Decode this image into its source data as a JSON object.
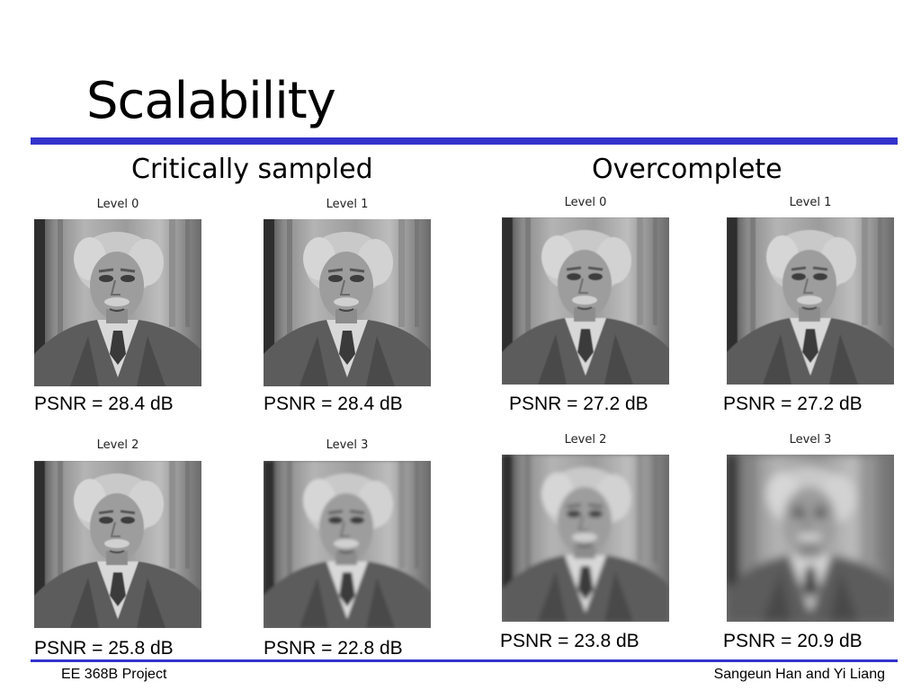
{
  "slide": {
    "title": "Scalability",
    "footer_left": "EE 368B Project",
    "footer_right": "Sangeun Han and Yi Liang"
  },
  "sections": {
    "critically": "Critically sampled",
    "overcomplete": "Overcomplete"
  },
  "panels": {
    "cs0": {
      "level": "Level 0",
      "psnr": "PSNR = 28.4 dB",
      "blur": 0
    },
    "cs1": {
      "level": "Level 1",
      "psnr": "PSNR = 28.4 dB",
      "blur": 0
    },
    "cs2": {
      "level": "Level 2",
      "psnr": "PSNR = 25.8 dB",
      "blur": 0.6
    },
    "cs3": {
      "level": "Level 3",
      "psnr": "PSNR = 22.8 dB",
      "blur": 1.6
    },
    "oc0": {
      "level": "Level 0",
      "psnr": "PSNR = 27.2 dB",
      "blur": 0.5
    },
    "oc1": {
      "level": "Level 1",
      "psnr": "PSNR = 27.2 dB",
      "blur": 0.5
    },
    "oc2": {
      "level": "Level 2",
      "psnr": "PSNR = 23.8 dB",
      "blur": 2.5
    },
    "oc3": {
      "level": "Level 3",
      "psnr": "PSNR = 20.9 dB",
      "blur": 5
    }
  }
}
